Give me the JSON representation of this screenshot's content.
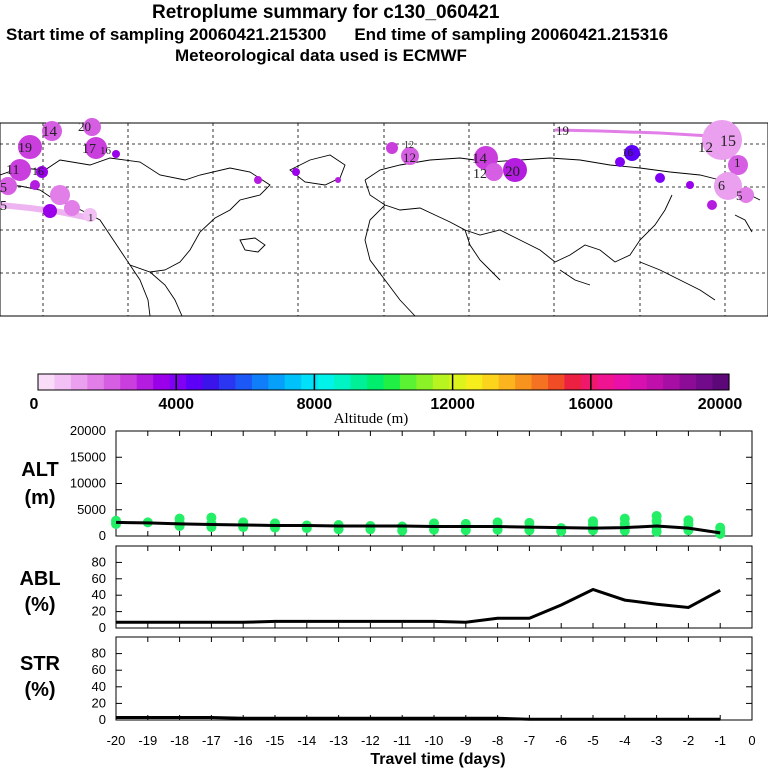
{
  "header": {
    "title": "Retroplume summary for c130_060421",
    "start_time": "Start time of sampling 20060421.215300",
    "end_time": "End time of sampling 20060421.215316",
    "met_data": "Meteorological data used is ECMWF"
  },
  "map_labels": [
    "14",
    "20",
    "19",
    "17",
    "16",
    "5",
    "11",
    "16",
    "5",
    "1",
    "12",
    "14",
    "12",
    "20",
    "19",
    "15",
    "12",
    "1",
    "6",
    "5",
    "16",
    "12"
  ],
  "colorbar": {
    "label": "Altitude (m)",
    "ticks": [
      "0",
      "4000",
      "8000",
      "12000",
      "16000",
      "20000"
    ],
    "colors": [
      "#f8dcf8",
      "#f2c0f4",
      "#eaa0ee",
      "#e27ee8",
      "#d65ee2",
      "#c93edd",
      "#b41de0",
      "#9b00ea",
      "#7f00f4",
      "#5d00f8",
      "#3b14ec",
      "#2a36f2",
      "#1b58f6",
      "#0f7ef8",
      "#06a0fa",
      "#00c2fa",
      "#00e0f8",
      "#00f2e8",
      "#00f4c4",
      "#00f098",
      "#00ee6e",
      "#20f046",
      "#5af232",
      "#8cf228",
      "#b8f420",
      "#dcf41c",
      "#f6ee1c",
      "#fcd41c",
      "#fcb41e",
      "#f8941e",
      "#f47222",
      "#f04c26",
      "#ec2040",
      "#f0186a",
      "#f01490",
      "#e810a8",
      "#d810b0",
      "#c010ac",
      "#a60ea4",
      "#8c0c98",
      "#720a8c",
      "#5c0878"
    ]
  },
  "chart_data": [
    {
      "type": "line",
      "title": "ALT (m)",
      "ylabel_top": "ALT",
      "ylabel_bottom": "(m)",
      "ylim": [
        0,
        20000
      ],
      "yticks": [
        "20000",
        "15000",
        "10000",
        "5000",
        "0"
      ],
      "x": [
        -20,
        -19,
        -18,
        -17,
        -16,
        -15,
        -14,
        -13,
        -12,
        -11,
        -10,
        -9,
        -8,
        -7,
        -6,
        -5,
        -4,
        -3,
        -2,
        -1
      ],
      "values": [
        2600,
        2500,
        2300,
        2200,
        2100,
        2000,
        2000,
        1900,
        1900,
        1900,
        1800,
        1800,
        1800,
        1700,
        1600,
        1500,
        1600,
        1900,
        1500,
        600
      ],
      "scatter_color": "#22ee66",
      "scatter": [
        [
          -20,
          2900
        ],
        [
          -20,
          2300
        ],
        [
          -19,
          2600
        ],
        [
          -18,
          3300
        ],
        [
          -18,
          2500
        ],
        [
          -18,
          1900
        ],
        [
          -17,
          3500
        ],
        [
          -17,
          2400
        ],
        [
          -17,
          1700
        ],
        [
          -16,
          2600
        ],
        [
          -16,
          1700
        ],
        [
          -15,
          2400
        ],
        [
          -15,
          1600
        ],
        [
          -14,
          2000
        ],
        [
          -14,
          1500
        ],
        [
          -13,
          2100
        ],
        [
          -13,
          1300
        ],
        [
          -12,
          1900
        ],
        [
          -12,
          1300
        ],
        [
          -11,
          1800
        ],
        [
          -11,
          1000
        ],
        [
          -10,
          2400
        ],
        [
          -10,
          1200
        ],
        [
          -9,
          2300
        ],
        [
          -9,
          1100
        ],
        [
          -8,
          2600
        ],
        [
          -8,
          1200
        ],
        [
          -7,
          2500
        ],
        [
          -7,
          1100
        ],
        [
          -6,
          1500
        ],
        [
          -6,
          900
        ],
        [
          -5,
          2800
        ],
        [
          -5,
          2200
        ],
        [
          -5,
          1100
        ],
        [
          -4,
          3300
        ],
        [
          -4,
          2300
        ],
        [
          -4,
          1000
        ],
        [
          -3,
          3800
        ],
        [
          -3,
          2800
        ],
        [
          -3,
          1700
        ],
        [
          -3,
          800
        ],
        [
          -2,
          3000
        ],
        [
          -2,
          2200
        ],
        [
          -2,
          1100
        ],
        [
          -1,
          1600
        ],
        [
          -1,
          900
        ],
        [
          -1,
          400
        ]
      ]
    },
    {
      "type": "line",
      "title": "ABL (%)",
      "ylabel_top": "ABL",
      "ylabel_bottom": "(%)",
      "ylim": [
        0,
        100
      ],
      "yticks": [
        "80",
        "60",
        "40",
        "20",
        "0"
      ],
      "x": [
        -20,
        -19,
        -18,
        -17,
        -16,
        -15,
        -14,
        -13,
        -12,
        -11,
        -10,
        -9,
        -8,
        -7,
        -6,
        -5,
        -4,
        -3,
        -2,
        -1
      ],
      "values": [
        7,
        7,
        7,
        7,
        7,
        8,
        8,
        8,
        8,
        8,
        8,
        7,
        12,
        12,
        28,
        47,
        34,
        29,
        25,
        46
      ]
    },
    {
      "type": "line",
      "title": "STR (%)",
      "ylabel_top": "STR",
      "ylabel_bottom": "(%)",
      "ylim": [
        0,
        100
      ],
      "yticks": [
        "80",
        "60",
        "40",
        "20",
        "0"
      ],
      "x": [
        -20,
        -19,
        -18,
        -17,
        -16,
        -15,
        -14,
        -13,
        -12,
        -11,
        -10,
        -9,
        -8,
        -7,
        -6,
        -5,
        -4,
        -3,
        -2,
        -1
      ],
      "values": [
        3,
        3,
        3,
        3,
        2,
        2,
        2,
        2,
        2,
        2,
        2,
        2,
        2,
        1,
        1,
        1,
        1,
        1,
        1,
        1
      ]
    }
  ],
  "x_axis": {
    "label": "Travel time (days)",
    "xlim": [
      -20,
      0
    ],
    "ticks": [
      "-20",
      "-19",
      "-18",
      "-17",
      "-16",
      "-15",
      "-14",
      "-13",
      "-12",
      "-11",
      "-10",
      "-9",
      "-8",
      "-7",
      "-6",
      "-5",
      "-4",
      "-3",
      "-2",
      "-1",
      "0"
    ]
  }
}
